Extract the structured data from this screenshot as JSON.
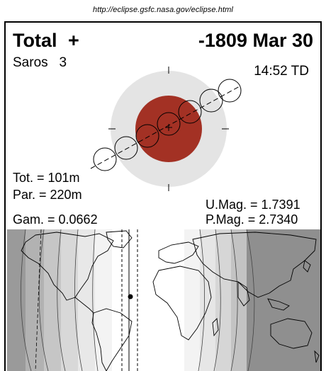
{
  "header": {
    "url": "http://eclipse.gsfc.nasa.gov/eclipse.html"
  },
  "eclipse": {
    "type": "Total",
    "type_symbol": "+",
    "date": "-1809 Mar 30",
    "saros_label": "Saros",
    "saros_number": "3",
    "time": "14:52 TD"
  },
  "stats": {
    "tot": "Tot. = 101m",
    "par": "Par. = 220m",
    "gam": "Gam. = 0.0662",
    "umag": "U.Mag. = 1.7391",
    "pmag": "P.Mag. = 2.7340"
  },
  "colors": {
    "umbra": "#a33124",
    "penumbra": "#e4e4e4",
    "map_night": "#8f8f8f"
  }
}
